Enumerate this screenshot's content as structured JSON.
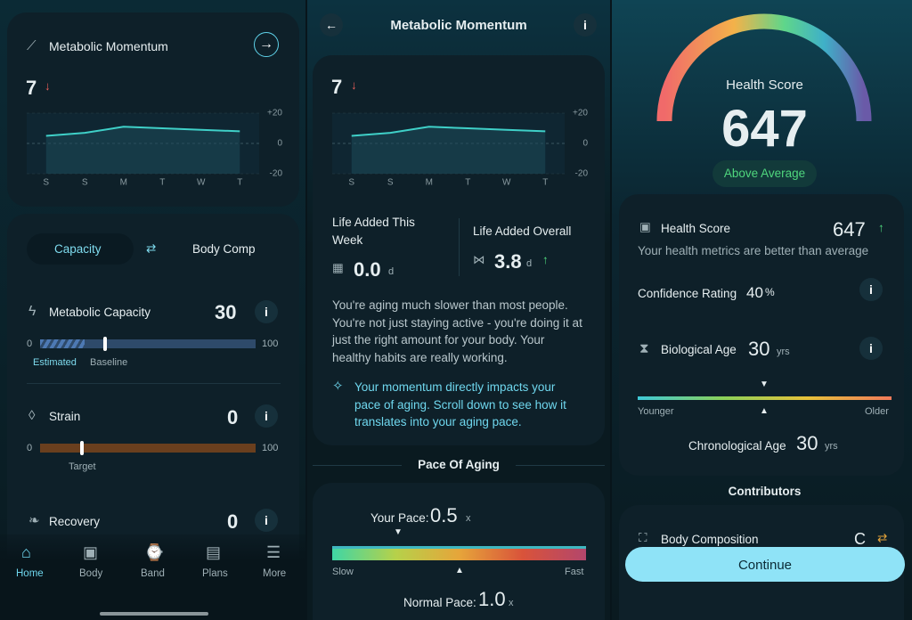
{
  "panel1": {
    "momentum": {
      "title": "Metabolic Momentum",
      "value": 7,
      "chart": {
        "type": "line",
        "categories": [
          "S",
          "S",
          "M",
          "T",
          "W",
          "T"
        ],
        "values": [
          5,
          7,
          11,
          10,
          9,
          8
        ],
        "color": "#3fd0c8",
        "ylim": [
          -20,
          20
        ],
        "yticks": [
          {
            "value": 20,
            "label": "+20"
          },
          0,
          -20
        ]
      }
    },
    "tabs": [
      "Capacity",
      "Body Comp"
    ],
    "metrics": [
      {
        "name": "Metabolic Capacity",
        "value": 30,
        "min": 0,
        "max": 100,
        "legend": [
          "Estimated",
          "Baseline"
        ]
      },
      {
        "name": "Strain",
        "value": 0,
        "min": 0,
        "max": 100,
        "marker_label": "Target"
      },
      {
        "name": "Recovery",
        "value": 0
      }
    ],
    "nav": [
      "Home",
      "Body",
      "Band",
      "Plans",
      "More"
    ]
  },
  "panel2": {
    "header": "Metabolic Momentum",
    "value": 7,
    "chart": {
      "type": "line",
      "categories": [
        "S",
        "S",
        "M",
        "T",
        "W",
        "T"
      ],
      "values": [
        5,
        7,
        11,
        10,
        9,
        8
      ],
      "color": "#3fd0c8",
      "ylim": [
        -20,
        20
      ],
      "yticks": [
        {
          "value": 20,
          "label": "+20"
        },
        0,
        -20
      ]
    },
    "life_week": {
      "label": "Life Added This Week",
      "value": "0.0",
      "unit": "d"
    },
    "life_overall": {
      "label": "Life Added Overall",
      "value": 3.8,
      "unit": "d"
    },
    "description": "You're aging much slower than most people. You're not just staying active - you're doing it at just the right amount for your body. Your healthy habits are really working.",
    "note": "Your momentum directly impacts your pace of aging. Scroll down to see how it translates into your aging pace.",
    "section": "Pace Of Aging",
    "your_pace": {
      "label": "Your Pace:",
      "value": 0.5,
      "unit": "x"
    },
    "slow": "Slow",
    "fast": "Fast",
    "normal_pace": {
      "label": "Normal Pace:",
      "value": "1.0",
      "unit": "x"
    }
  },
  "panel3": {
    "gauge_label": "Health Score",
    "score": 647,
    "badge": "Above Average",
    "card": {
      "title": "Health Score",
      "score": 647,
      "subtitle": "Your health metrics are better than average",
      "confidence": {
        "label": "Confidence Rating",
        "value": 40,
        "unit": "%"
      },
      "bio_age": {
        "label": "Biological Age",
        "value": 30,
        "unit": "yrs"
      },
      "younger": "Younger",
      "older": "Older",
      "chrono": {
        "label": "Chronological Age",
        "value": 30,
        "unit": "yrs"
      }
    },
    "section": "Contributors",
    "contributor": "Body Composition",
    "button": "Continue"
  }
}
